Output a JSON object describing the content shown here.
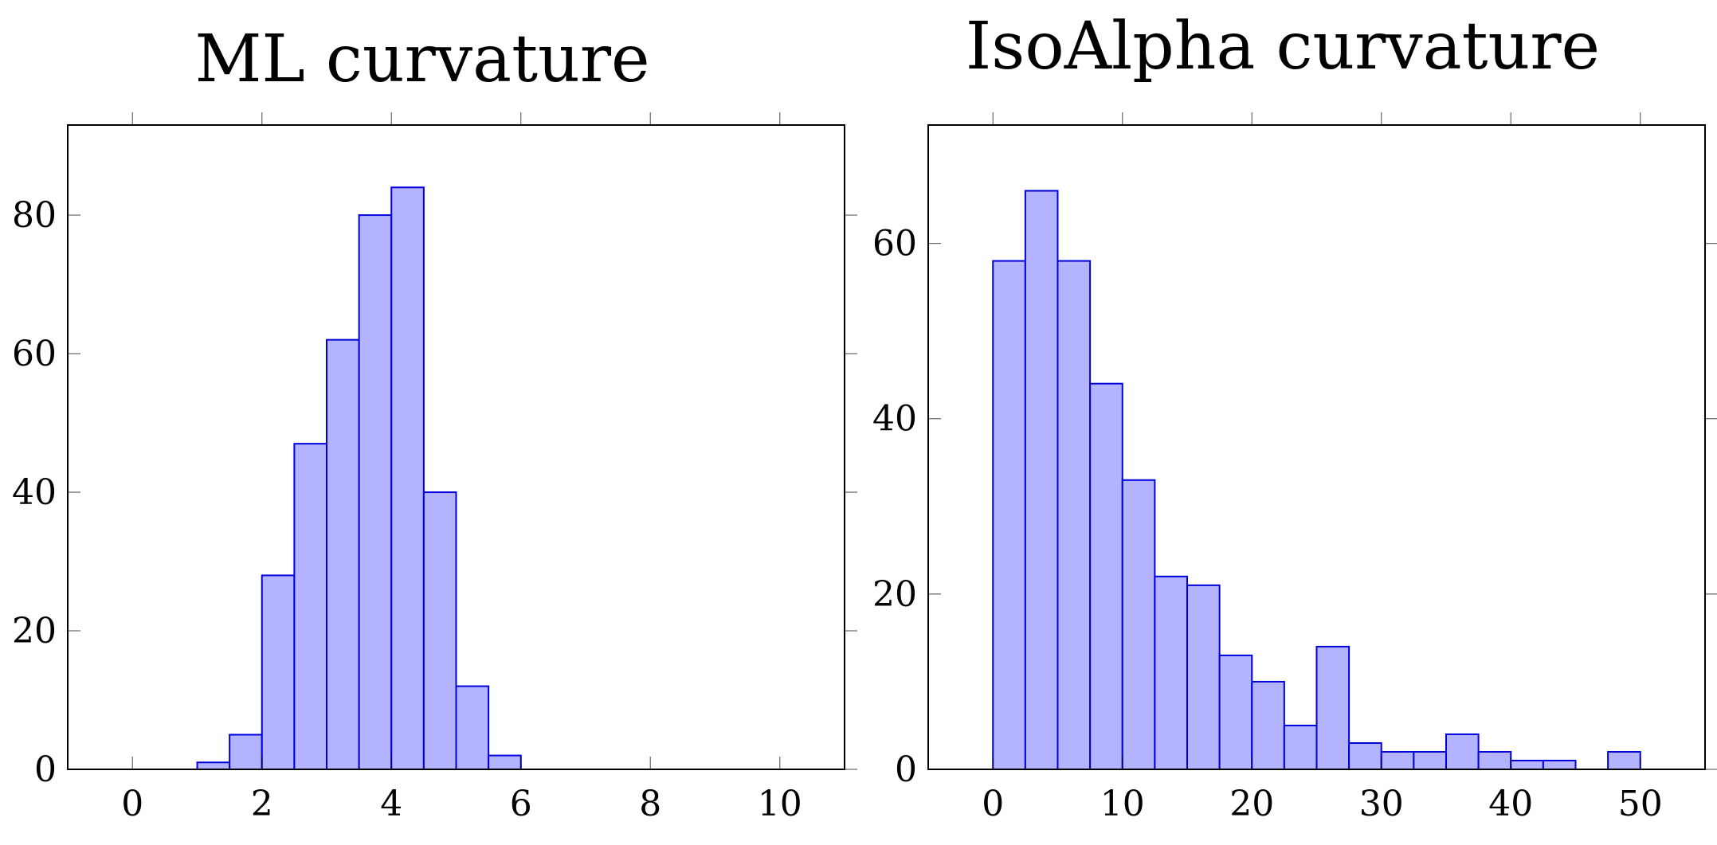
{
  "chart_data": [
    {
      "type": "bar",
      "title": "ML curvature",
      "xlabel": "",
      "ylabel": "",
      "xlim": [
        -1,
        11
      ],
      "ylim": [
        0,
        93
      ],
      "xticks": [
        0,
        2,
        4,
        6,
        8,
        10
      ],
      "xtick_labels": [
        "0",
        "2",
        "4",
        "6",
        "8",
        "10"
      ],
      "yticks": [
        0,
        20,
        40,
        60,
        80
      ],
      "ytick_labels": [
        "0",
        "20",
        "40",
        "60",
        "80"
      ],
      "bin_edges": [
        0,
        0.5,
        1,
        1.5,
        2,
        2.5,
        3,
        3.5,
        4,
        4.5,
        5,
        5.5,
        6,
        6.5,
        7,
        7.5,
        8,
        8.5,
        9,
        9.5,
        10
      ],
      "values": [
        0,
        0,
        1,
        5,
        28,
        47,
        62,
        80,
        84,
        40,
        12,
        2,
        0,
        0,
        0,
        0,
        0,
        0,
        0,
        0
      ],
      "grid": false,
      "bar_fill": "#b3b3ff",
      "bar_edge": "#0000dd"
    },
    {
      "type": "bar",
      "title": "IsoAlpha curvature",
      "xlabel": "",
      "ylabel": "",
      "xlim": [
        -5,
        55
      ],
      "ylim": [
        0,
        73.5
      ],
      "xticks": [
        0,
        10,
        20,
        30,
        40,
        50
      ],
      "xtick_labels": [
        "0",
        "10",
        "20",
        "30",
        "40",
        "50"
      ],
      "yticks": [
        0,
        20,
        40,
        60
      ],
      "ytick_labels": [
        "0",
        "20",
        "40",
        "60"
      ],
      "bin_edges": [
        0,
        2.5,
        5,
        7.5,
        10,
        12.5,
        15,
        17.5,
        20,
        22.5,
        25,
        27.5,
        30,
        32.5,
        35,
        37.5,
        40,
        42.5,
        45,
        47.5,
        50
      ],
      "values": [
        58,
        66,
        58,
        44,
        33,
        22,
        21,
        13,
        10,
        5,
        14,
        3,
        2,
        2,
        4,
        2,
        1,
        1,
        0,
        2
      ],
      "grid": false,
      "bar_fill": "#b3b3ff",
      "bar_edge": "#0000dd"
    }
  ]
}
